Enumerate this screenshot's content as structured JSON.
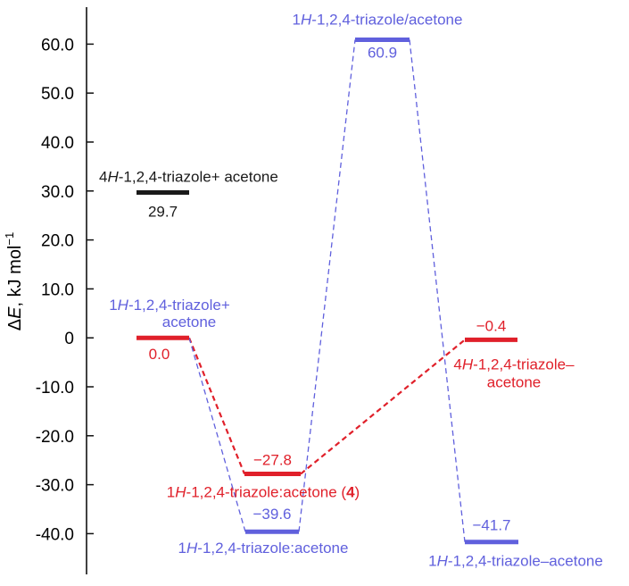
{
  "chart_data": {
    "type": "energy_level_diagram",
    "ylabel": "ΔE, kJ mol",
    "ylabel_superscript": "−1",
    "ylim": [
      -47,
      77
    ],
    "yticks": [
      60,
      50,
      40,
      30,
      20,
      10,
      0,
      -10,
      -20,
      -30,
      -40
    ],
    "ytick_labels": [
      "60.0",
      "50.0",
      "40.0",
      "30.0",
      "20.0",
      "10.0",
      "0",
      "-10.0",
      "-20.0",
      "-30.0",
      "-40.0"
    ],
    "colors": {
      "black": "#1a1a1a",
      "red": "#e0202a",
      "blue": "#6060dd"
    },
    "levels": [
      {
        "id": "4h-sep",
        "color": "black",
        "energy": 29.7,
        "value_label": "29.7",
        "name_parts": [
          {
            "text": "4"
          },
          {
            "text": "H",
            "italic": true
          },
          {
            "text": "-1,2,4-triazole+ acetone"
          }
        ]
      },
      {
        "id": "1h-sep",
        "color": "red",
        "energy": 0.0,
        "value_label": "0.0",
        "name_parts": [
          {
            "text": "1"
          },
          {
            "text": "H",
            "italic": true
          },
          {
            "text": "-1,2,4-triazole+"
          }
        ],
        "name_line2": "acetone",
        "name_color": "blue"
      },
      {
        "id": "1h-complex-4",
        "color": "red",
        "energy": -27.8,
        "value_label": "−27.8",
        "name_parts": [
          {
            "text": "1"
          },
          {
            "text": "H",
            "italic": true
          },
          {
            "text": "-1,2,4-triazole:acetone ("
          },
          {
            "text": "4",
            "bold": true
          },
          {
            "text": ")"
          }
        ]
      },
      {
        "id": "4h-complex",
        "color": "red",
        "energy": -0.4,
        "value_label": "−0.4",
        "name_parts": [
          {
            "text": "4"
          },
          {
            "text": "H",
            "italic": true
          },
          {
            "text": "-1,2,4-triazole–"
          }
        ],
        "name_line2": "acetone"
      },
      {
        "id": "1h-complex-b",
        "color": "blue",
        "energy": -39.6,
        "value_label": "−39.6",
        "name_parts": [
          {
            "text": "1"
          },
          {
            "text": "H",
            "italic": true
          },
          {
            "text": "-1,2,4-triazole:acetone"
          }
        ]
      },
      {
        "id": "1h-ts",
        "color": "blue",
        "energy": 60.9,
        "value_label": "60.9",
        "name_parts": [
          {
            "text": "1"
          },
          {
            "text": "H",
            "italic": true
          },
          {
            "text": "-1,2,4-triazole/acetone"
          }
        ]
      },
      {
        "id": "1h-complex-c",
        "color": "blue",
        "energy": -41.7,
        "value_label": "−41.7",
        "name_parts": [
          {
            "text": "1"
          },
          {
            "text": "H",
            "italic": true
          },
          {
            "text": "-1,2,4-triazole–acetone"
          }
        ]
      }
    ],
    "connections": [
      {
        "from": "1h-sep",
        "to": "1h-complex-4",
        "color": "red",
        "style": "dashed-bold"
      },
      {
        "from": "1h-complex-4",
        "to": "4h-complex",
        "color": "red",
        "style": "dashed-bold"
      },
      {
        "from": "1h-sep",
        "to": "1h-complex-b",
        "color": "blue",
        "style": "dashed"
      },
      {
        "from": "1h-complex-b",
        "to": "1h-ts",
        "color": "blue",
        "style": "dashed"
      },
      {
        "from": "1h-ts",
        "to": "1h-complex-c",
        "color": "blue",
        "style": "dashed"
      }
    ]
  }
}
